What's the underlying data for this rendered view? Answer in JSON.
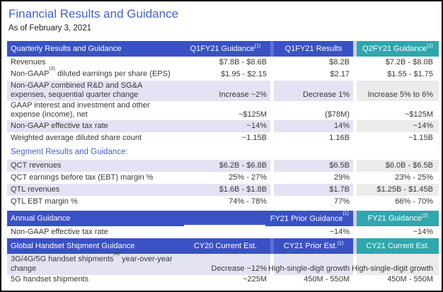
{
  "title": "Financial Results and Guidance",
  "subtitle": "As of February 3, 2021",
  "colors": {
    "header_blue": "#3A51C5",
    "header_teal": "#2FA7AE",
    "row_shade": "#E3E3F3",
    "row_shade_teal": "#E9ECE9",
    "title_blue": "#4463C7",
    "section_blue": "#4A5EC8",
    "text_dark": "#383838"
  },
  "quarterly": {
    "header": {
      "label": "Quarterly Results and Guidance",
      "col2": "Q1FY21 Guidance",
      "col2_sup": "(1)",
      "col3": "Q1FY21 Results",
      "col4": "Q2FY21 Guidance",
      "col4_sup": "(2)"
    },
    "rows": [
      {
        "label": "Revenues",
        "v2": "$7.8B - $8.6B",
        "v3": "$8.2B",
        "v4": "$7.2B - $8.0B"
      },
      {
        "label_pre": "Non-GAAP",
        "label_sup": "(3)",
        "label_post": " diluted earnings per share (EPS)",
        "v2": "$1.95 - $2.15",
        "v3": "$2.17",
        "v4": "$1.55 - $1.75"
      },
      {
        "label": "Non-GAAP combined R&D and SG&A expenses, sequential quarter change",
        "v2": "Increase ~2%",
        "v3": "Decrease 1%",
        "v4": "Increase 5% to 6%"
      },
      {
        "label": "GAAP interest and investment and other expense (income), net",
        "v2": "~$125M",
        "v3": "($78M)",
        "v4": "~$125M"
      },
      {
        "label": "Non-GAAP effective tax rate",
        "v2": "~14%",
        "v3": "14%",
        "v4": "~14%"
      },
      {
        "label": "Weighted average diluted share count",
        "v2": "~1.15B",
        "v3": "1.16B",
        "v4": "~1.15B"
      }
    ]
  },
  "segment": {
    "section_label": "Segment Results and Guidance:",
    "rows": [
      {
        "label": "QCT revenues",
        "v2": "$6.2B - $6.8B",
        "v3": "$6.5B",
        "v4": "$6.0B - $6.5B"
      },
      {
        "label": "QCT earnings before tax (EBT) margin %",
        "v2": "25% - 27%",
        "v3": "29%",
        "v4": "23% - 25%"
      },
      {
        "label": "QTL revenues",
        "v2": "$1.6B - $1.8B",
        "v3": "$1.7B",
        "v4": "$1.25B - $1.45B"
      },
      {
        "label": "QTL EBT margin %",
        "v2": "74% - 78%",
        "v3": "77%",
        "v4": "66% - 70%"
      }
    ]
  },
  "annual": {
    "header": {
      "label": "Annual Guidance",
      "col3": "FY21 Prior Guidance",
      "col3_sup": "(1)",
      "col4": "FY21 Guidance",
      "col4_sup": "(2)"
    },
    "rows": [
      {
        "label": "Non-GAAP effective tax rate",
        "v3": "~14%",
        "v4": "~14%"
      }
    ]
  },
  "handset": {
    "header": {
      "label": "Global Handset Shipment Guidance",
      "col2": "CY20 Current Est.",
      "col3": "CY21 Prior Est.",
      "col3_sup": "(1)",
      "col4": "CY21 Current Est."
    },
    "rows": [
      {
        "label_pre": "3G/4G/5G handset shipments",
        "label_sup": "(4)",
        "label_post": " year-over-year change",
        "v2": "Decrease ~12%",
        "v3": "High-single-digit growth",
        "v4": "High-single-digit growth"
      },
      {
        "label": "5G handset shipments",
        "v2": "~225M",
        "v3": "450M - 550M",
        "v4": "450M - 550M"
      }
    ]
  }
}
